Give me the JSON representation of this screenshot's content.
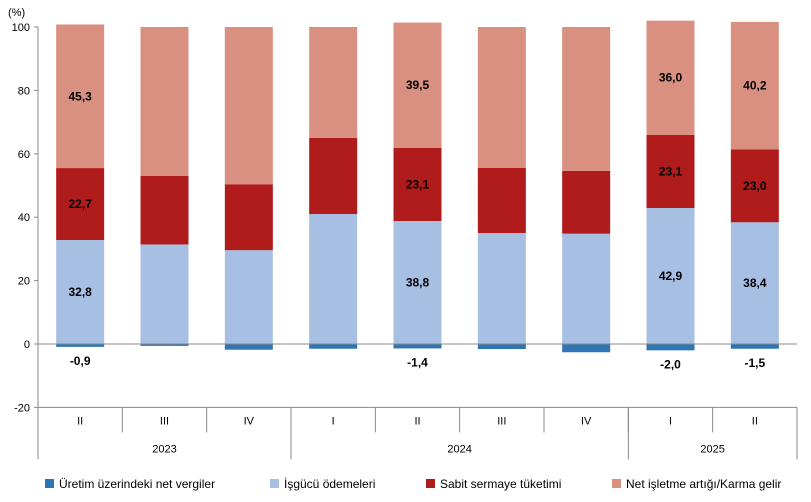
{
  "chart_data": {
    "type": "bar",
    "stacked": true,
    "unit_label": "(%)",
    "ylim": [
      -20,
      100
    ],
    "yticks": [
      -20,
      0,
      20,
      40,
      60,
      80,
      100
    ],
    "grid": false,
    "legend_position": "bottom",
    "categories": [
      "II",
      "III",
      "IV",
      "I",
      "II",
      "III",
      "IV",
      "I",
      "II"
    ],
    "year_groups": [
      {
        "label": "2023",
        "start": 0,
        "end": 2
      },
      {
        "label": "2024",
        "start": 3,
        "end": 6
      },
      {
        "label": "2025",
        "start": 7,
        "end": 8
      }
    ],
    "series": [
      {
        "name": "Üretim üzerindeki net vergiler",
        "color": "#2e75b6",
        "values": [
          -0.9,
          -0.6,
          -1.8,
          -1.5,
          -1.4,
          -1.6,
          -2.6,
          -2.0,
          -1.5
        ],
        "labels": [
          "-0,9",
          "",
          "",
          "",
          "-1,4",
          "",
          "",
          "-2,0",
          "-1,5"
        ]
      },
      {
        "name": "İşgücü ödemeleri",
        "color": "#a7bfe3",
        "values": [
          32.8,
          31.4,
          29.6,
          41.0,
          38.8,
          35.0,
          34.8,
          42.9,
          38.4
        ],
        "labels": [
          "32,8",
          "",
          "",
          "",
          "38,8",
          "",
          "",
          "42,9",
          "38,4"
        ]
      },
      {
        "name": "Sabit sermaye tüketimi",
        "color": "#b01c1c",
        "values": [
          22.7,
          21.6,
          20.8,
          24.0,
          23.1,
          20.6,
          19.8,
          23.1,
          23.0
        ],
        "labels": [
          "22,7",
          "",
          "",
          "",
          "23,1",
          "",
          "",
          "23,1",
          "23,0"
        ]
      },
      {
        "name": "Net işletme artığı/Karma gelir",
        "color": "#d99080",
        "values": [
          45.3,
          47.0,
          49.6,
          35.0,
          39.5,
          44.4,
          45.4,
          36.0,
          40.2
        ],
        "labels": [
          "45,3",
          "",
          "",
          "",
          "39,5",
          "",
          "",
          "36,0",
          "40,2"
        ]
      }
    ]
  }
}
